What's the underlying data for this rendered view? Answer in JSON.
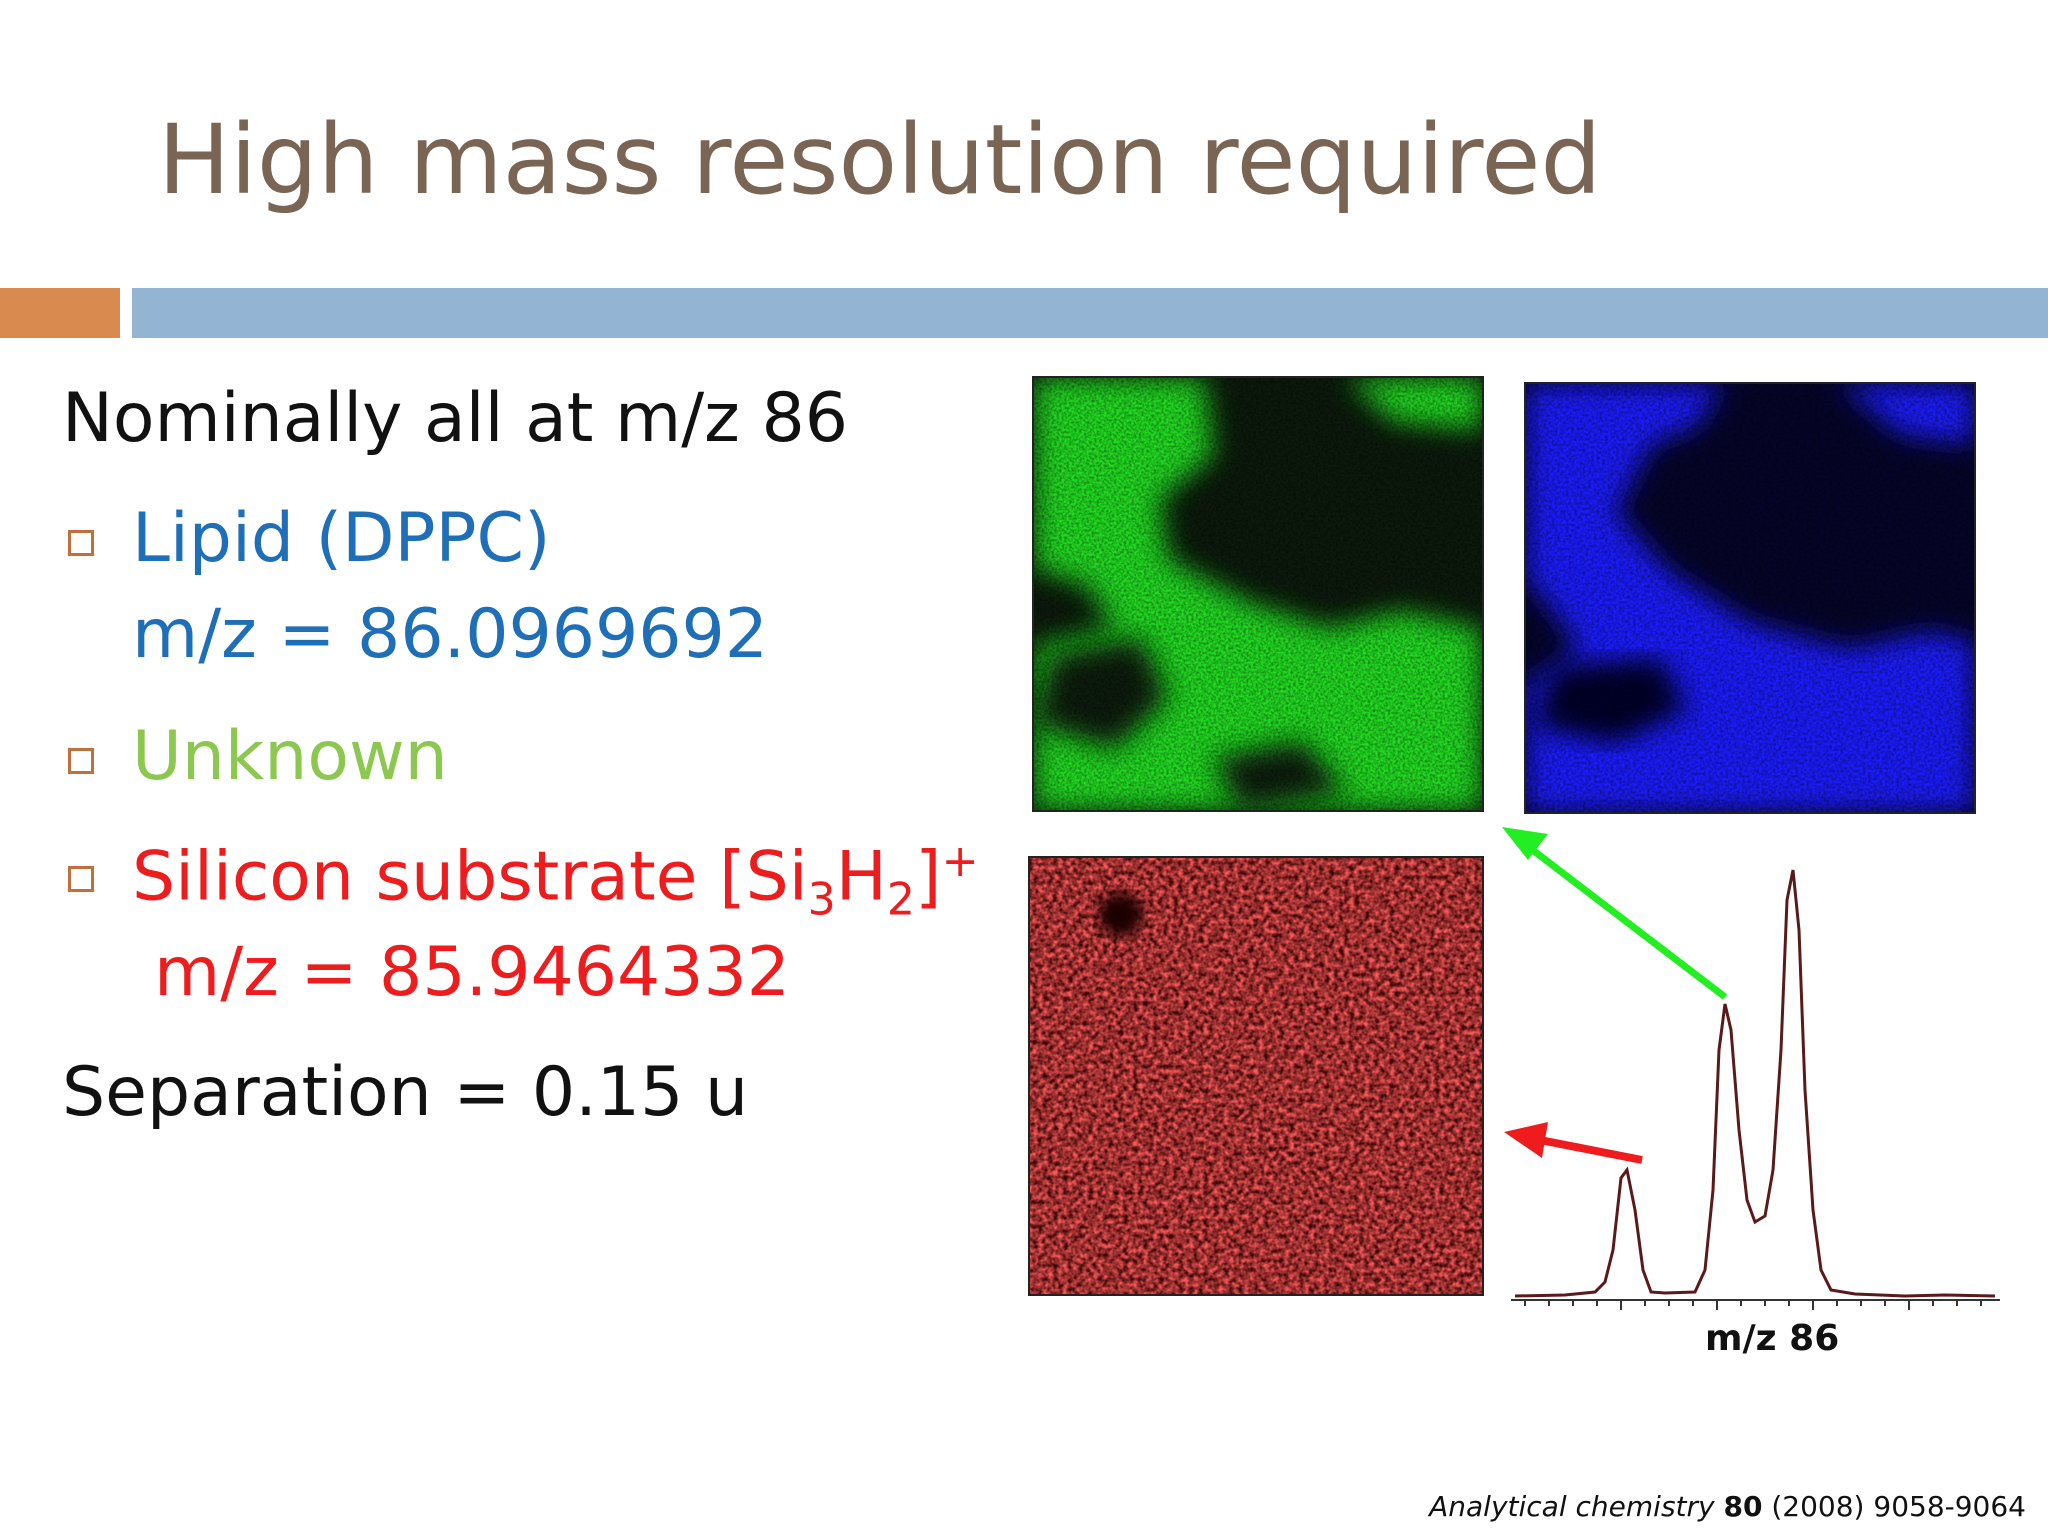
{
  "slide": {
    "title": "High mass resolution required",
    "lines": {
      "nominal": "Nominally all at m/z 86",
      "lipid_name": "Lipid (DPPC)",
      "lipid_mz": "m/z = 86.0969692",
      "unknown": "Unknown",
      "silicon_prefix": "Silicon substrate [Si",
      "silicon_sub1": "3",
      "silicon_h": "H",
      "silicon_sub2": "2",
      "silicon_close": "]",
      "silicon_sup": "+",
      "silicon_mz": "m/z = 85.9464332",
      "separation": "Separation = 0.15 u"
    },
    "spectrum_xlabel": "m/z 86",
    "citation": {
      "journal": "Analytical chemistry",
      "volume": "80",
      "rest": "(2008) 9058-9064"
    },
    "colors": {
      "title": "#7a6555",
      "lipid": "#1f6fb8",
      "unknown": "#8cc850",
      "silicon": "#ee1c1c",
      "green_image": "#22dd22",
      "blue_image": "#1a1aff",
      "red_image": "#ee2020"
    }
  }
}
